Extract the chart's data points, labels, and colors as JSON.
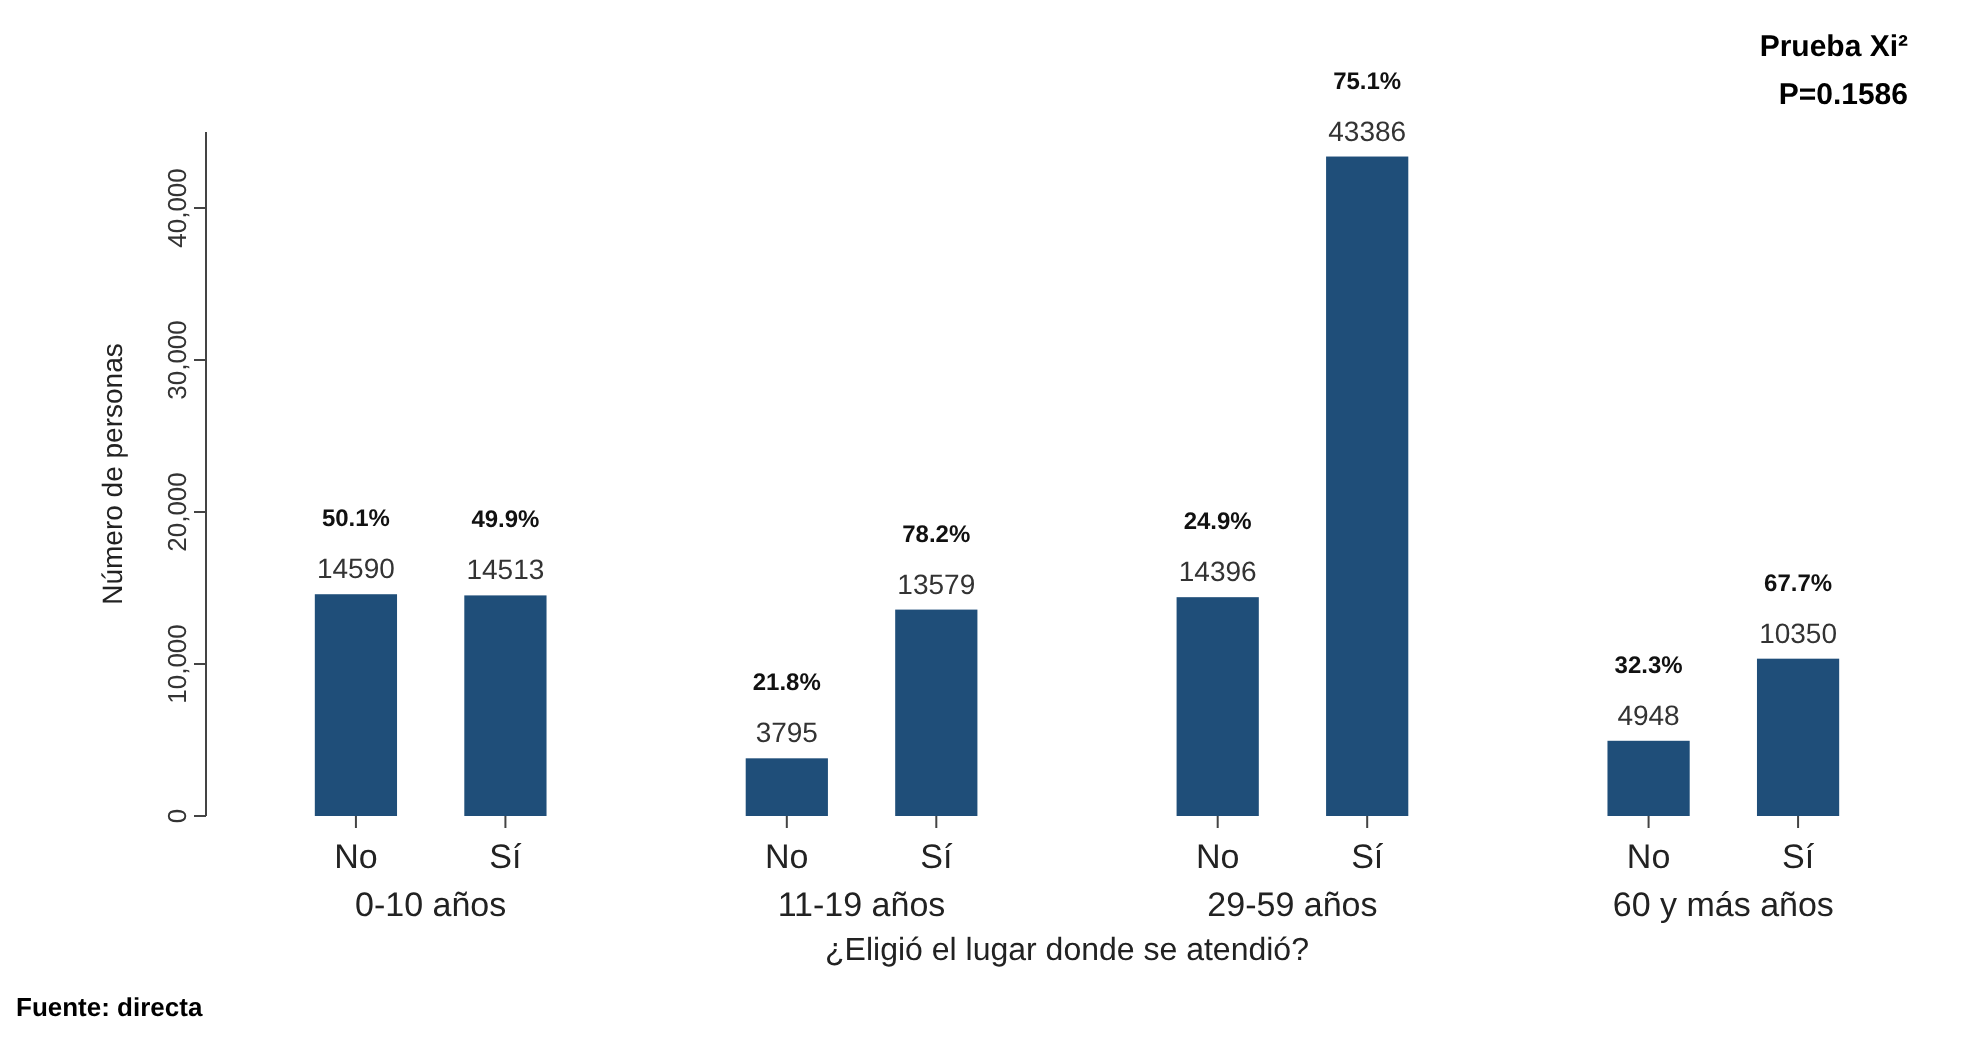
{
  "chart_data": {
    "type": "bar",
    "xlabel": "¿Eligió el lugar donde se atendió?",
    "ylabel": "Número de personas",
    "categories": [
      "0-10 años",
      "11-19 años",
      "29-59 años",
      "60 y más años"
    ],
    "series": [
      {
        "name": "No",
        "color": "#1f4e79",
        "values": [
          14590,
          3795,
          14396,
          4948
        ]
      },
      {
        "name": "Sí",
        "color": "#1f4e79",
        "values": [
          14513,
          13579,
          43386,
          10350
        ]
      }
    ],
    "data_labels": true,
    "ylim": [
      0,
      45000
    ],
    "yticks": [
      0,
      {
        "value": 10000,
        "label": "10,000"
      },
      {
        "value": 20000,
        "label": "20,000"
      },
      {
        "value": 30000,
        "label": "30,000"
      },
      {
        "value": 40000,
        "label": "40,000"
      }
    ],
    "grid": false,
    "annotations": [
      "50.1%",
      "21.8%",
      "24.9%",
      "32.3%",
      "49.9%",
      "78.2%",
      "75.1%",
      "67.7%",
      "Prueba Xi²",
      "P=0.1586",
      "Fuente: directa"
    ]
  }
}
